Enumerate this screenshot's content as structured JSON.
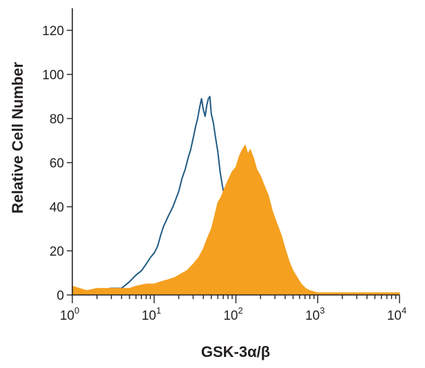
{
  "chart_data": {
    "type": "histogram",
    "xlabel": "GSK-3α/β",
    "ylabel": "Relative Cell Number",
    "x_scale": "log",
    "xlim": [
      1,
      10000
    ],
    "ylim": [
      0,
      130
    ],
    "x_ticks": [
      {
        "base": "10",
        "exp": "0",
        "value": 1
      },
      {
        "base": "10",
        "exp": "1",
        "value": 10
      },
      {
        "base": "10",
        "exp": "2",
        "value": 100
      },
      {
        "base": "10",
        "exp": "3",
        "value": 1000
      },
      {
        "base": "10",
        "exp": "4",
        "value": 10000
      }
    ],
    "y_ticks": [
      "0",
      "20",
      "40",
      "60",
      "80",
      "100",
      "120"
    ],
    "grid": false,
    "legend": "none",
    "series": [
      {
        "style": "outline",
        "color": "#1f5a82",
        "points": [
          [
            1.0,
            2
          ],
          [
            1.5,
            1
          ],
          [
            2.0,
            2
          ],
          [
            3.0,
            3
          ],
          [
            4.0,
            3
          ],
          [
            5.0,
            6
          ],
          [
            6.0,
            9
          ],
          [
            7.0,
            11
          ],
          [
            8.0,
            14
          ],
          [
            9.0,
            17
          ],
          [
            10.0,
            19
          ],
          [
            11.0,
            22
          ],
          [
            12.0,
            27
          ],
          [
            13.0,
            31
          ],
          [
            15.0,
            36
          ],
          [
            17.0,
            40
          ],
          [
            20.0,
            47
          ],
          [
            22.0,
            53
          ],
          [
            24.0,
            57
          ],
          [
            26.0,
            62
          ],
          [
            28.0,
            66
          ],
          [
            30.0,
            71
          ],
          [
            32.0,
            76
          ],
          [
            34.0,
            80
          ],
          [
            36.0,
            85
          ],
          [
            38.0,
            89
          ],
          [
            40.0,
            84
          ],
          [
            42.0,
            81
          ],
          [
            44.0,
            86
          ],
          [
            46.0,
            89
          ],
          [
            48.0,
            90
          ],
          [
            50.0,
            82
          ],
          [
            53.0,
            78
          ],
          [
            56.0,
            72
          ],
          [
            60.0,
            65
          ],
          [
            64.0,
            56
          ],
          [
            68.0,
            50
          ],
          [
            72.0,
            45
          ],
          [
            78.0,
            32
          ],
          [
            85.0,
            22
          ],
          [
            92.0,
            15
          ],
          [
            100.0,
            10
          ],
          [
            110.0,
            6
          ],
          [
            125.0,
            3
          ],
          [
            140.0,
            1
          ],
          [
            160.0,
            0
          ]
        ]
      },
      {
        "style": "filled",
        "color": "#f5a01f",
        "points": [
          [
            1.0,
            4
          ],
          [
            1.5,
            2
          ],
          [
            2.0,
            3
          ],
          [
            3.0,
            3
          ],
          [
            4.0,
            3
          ],
          [
            5.0,
            3
          ],
          [
            6.0,
            4
          ],
          [
            8.0,
            5
          ],
          [
            10.0,
            5
          ],
          [
            12.0,
            6
          ],
          [
            15.0,
            7
          ],
          [
            18.0,
            8
          ],
          [
            20.0,
            9
          ],
          [
            25.0,
            11
          ],
          [
            30.0,
            14
          ],
          [
            35.0,
            17
          ],
          [
            40.0,
            21
          ],
          [
            45.0,
            26
          ],
          [
            50.0,
            30
          ],
          [
            55.0,
            36
          ],
          [
            60.0,
            42
          ],
          [
            65.0,
            44
          ],
          [
            70.0,
            47
          ],
          [
            80.0,
            52
          ],
          [
            90.0,
            56
          ],
          [
            100.0,
            58
          ],
          [
            110.0,
            63
          ],
          [
            120.0,
            66
          ],
          [
            130.0,
            68
          ],
          [
            140.0,
            64
          ],
          [
            150.0,
            66
          ],
          [
            165.0,
            62
          ],
          [
            180.0,
            57
          ],
          [
            200.0,
            54
          ],
          [
            220.0,
            50
          ],
          [
            250.0,
            45
          ],
          [
            280.0,
            38
          ],
          [
            320.0,
            32
          ],
          [
            360.0,
            27
          ],
          [
            400.0,
            21
          ],
          [
            450.0,
            15
          ],
          [
            500.0,
            11
          ],
          [
            560.0,
            8
          ],
          [
            630.0,
            5
          ],
          [
            710.0,
            3
          ],
          [
            800.0,
            2
          ],
          [
            1000.0,
            1
          ],
          [
            1500.0,
            1
          ],
          [
            2500.0,
            1
          ],
          [
            5000.0,
            1
          ],
          [
            10000.0,
            1
          ]
        ]
      }
    ]
  }
}
